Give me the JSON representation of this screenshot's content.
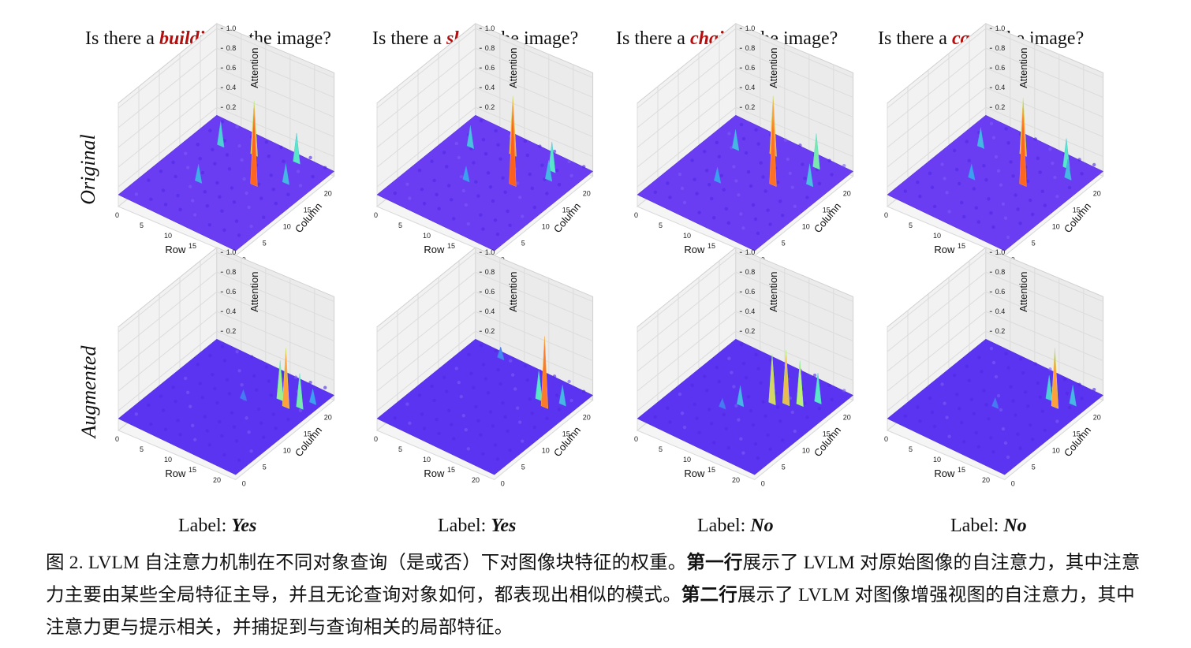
{
  "figure": {
    "questions": [
      {
        "prefix": "Is there a ",
        "keyword": "building",
        "suffix": " in the image?"
      },
      {
        "prefix": "Is there a ",
        "keyword": "sky",
        "suffix": " in the image?"
      },
      {
        "prefix": "Is there a ",
        "keyword": "chair",
        "suffix": " in the image?"
      },
      {
        "prefix": "Is there a ",
        "keyword": "car",
        "suffix": " in the image?"
      }
    ],
    "row_labels": [
      "Original",
      "Augmented"
    ],
    "label_prefix": "Label: ",
    "labels": [
      "Yes",
      "Yes",
      "No",
      "No"
    ],
    "axis": {
      "xlabel": "Row",
      "ylabel": "Column",
      "zlabel": "Attention",
      "row_ticks": [
        "0",
        "5",
        "10",
        "15",
        "20"
      ],
      "col_ticks": [
        "0",
        "5",
        "10",
        "15",
        "20"
      ],
      "z_ticks": [
        "0.2",
        "0.4",
        "0.6",
        "0.8",
        "1.0"
      ]
    },
    "colors": {
      "keyword": "#b40f0f",
      "surface_low": "#5b2ef0",
      "peak": "#ff1a00"
    }
  },
  "caption": {
    "part1": "图 2. LVLM 自注意力机制在不同对象查询（是或否）下对图像块特征的权重。",
    "bold1": "第一行",
    "part2": "展示了 LVLM 对原始图像的自注意力，其中注意力主要由某些全局特征主导，并且无论查询对象如何，都表现出相似的模式。",
    "bold2": "第二行",
    "part3": "展示了 LVLM 对图像增强视图的自注意力，其中注意力更与提示相关，并捕捉到与查询相关的局部特征。"
  }
}
